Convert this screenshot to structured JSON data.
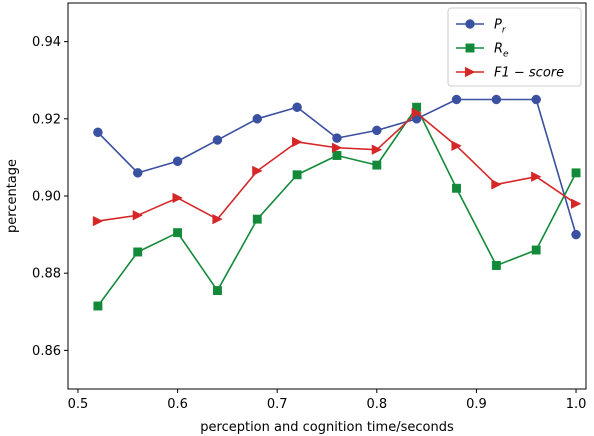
{
  "chart_data": {
    "type": "line",
    "title": "",
    "xlabel": "perception and cognition time/seconds",
    "ylabel": "percentage",
    "xlim": [
      0.49,
      1.01
    ],
    "ylim": [
      0.85,
      0.95
    ],
    "xticks": [
      "0.5",
      "0.6",
      "0.7",
      "0.8",
      "0.9",
      "1.0"
    ],
    "yticks": [
      "0.86",
      "0.88",
      "0.90",
      "0.92",
      "0.94"
    ],
    "grid": false,
    "legend_position": "top-right",
    "x": [
      0.52,
      0.56,
      0.6,
      0.64,
      0.68,
      0.72,
      0.76,
      0.8,
      0.84,
      0.88,
      0.92,
      0.96,
      1.0
    ],
    "series": [
      {
        "name": "P",
        "subscript": "r",
        "color": "#3a50a0",
        "marker": "circle",
        "values": [
          0.9165,
          0.906,
          0.909,
          0.9145,
          0.92,
          0.923,
          0.915,
          0.917,
          0.92,
          0.925,
          0.925,
          0.925,
          0.89
        ]
      },
      {
        "name": "R",
        "subscript": "e",
        "color": "#138a3a",
        "marker": "square",
        "values": [
          0.8715,
          0.8855,
          0.8905,
          0.8755,
          0.894,
          0.9055,
          0.9105,
          0.908,
          0.923,
          0.902,
          0.882,
          0.886,
          0.906
        ]
      },
      {
        "name": "F1 − score",
        "subscript": "",
        "color": "#d62728",
        "marker": "triangle-right",
        "values": [
          0.8935,
          0.895,
          0.8995,
          0.894,
          0.9065,
          0.914,
          0.9125,
          0.912,
          0.9215,
          0.913,
          0.903,
          0.905,
          0.898
        ]
      }
    ]
  }
}
